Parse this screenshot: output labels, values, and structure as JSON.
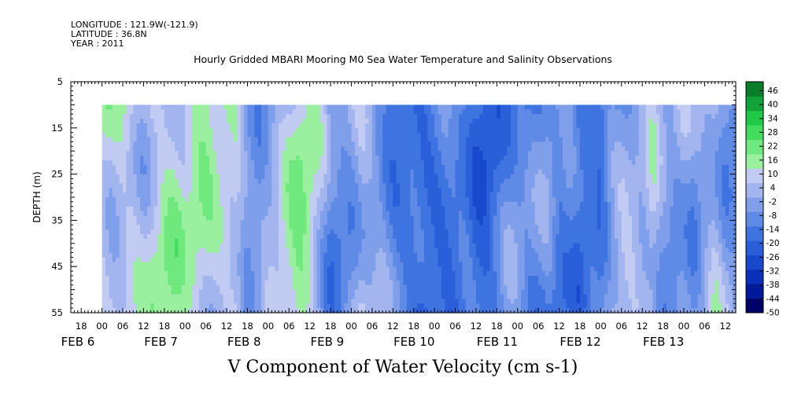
{
  "header": {
    "longitude": "LONGITUDE : 121.9W(-121.9)",
    "latitude": "LATITUDE : 36.8N",
    "year": "YEAR : 2011"
  },
  "chart_data": {
    "type": "heatmap",
    "title": "Hourly Gridded MBARI Mooring M0 Sea Water Temperature and Salinity Observations",
    "xlabel": "V Component of Water Velocity (cm s-1)",
    "ylabel": "DEPTH (m)",
    "ylim": [
      55,
      5
    ],
    "y_ticks": [
      5,
      15,
      25,
      35,
      45,
      55
    ],
    "data_depth_range": [
      10,
      55
    ],
    "x_range_hours": [
      0,
      192
    ],
    "x_start": "2011-02-05 15:00",
    "x_tick_labels": [
      "18",
      "00",
      "06",
      "12",
      "18",
      "00",
      "06",
      "12",
      "18",
      "00",
      "06",
      "12",
      "18",
      "00",
      "06",
      "12",
      "18",
      "00",
      "06",
      "12",
      "18",
      "00",
      "06",
      "12",
      "18",
      "00",
      "06",
      "12",
      "18",
      "00",
      "06",
      "12"
    ],
    "x_day_labels": [
      {
        "text": "FEB  6",
        "at_hour": 9
      },
      {
        "text": "FEB  7",
        "at_hour": 33
      },
      {
        "text": "FEB  8",
        "at_hour": 57
      },
      {
        "text": "FEB  9",
        "at_hour": 81
      },
      {
        "text": "FEB 10",
        "at_hour": 105
      },
      {
        "text": "FEB 11",
        "at_hour": 129
      },
      {
        "text": "FEB 12",
        "at_hour": 153
      },
      {
        "text": "FEB 13",
        "at_hour": 177
      }
    ],
    "data_start_hour": 9,
    "colorbar": {
      "levels": [
        -50,
        -44,
        -38,
        -32,
        -26,
        -20,
        -14,
        -8,
        -2,
        4,
        10,
        16,
        22,
        28,
        34,
        40,
        46
      ],
      "labels": [
        "46",
        "40",
        "34",
        "28",
        "22",
        "16",
        "10",
        "4",
        "-2",
        "-8",
        "-14",
        "-20",
        "-26",
        "-32",
        "-38",
        "-44",
        "-50"
      ]
    },
    "field_profile": {
      "hours": [
        9,
        12,
        15,
        18,
        21,
        24,
        27,
        30,
        33,
        36,
        39,
        42,
        45,
        48,
        51,
        54,
        57,
        60,
        63,
        66,
        69,
        72,
        75,
        78,
        81,
        84,
        87,
        90,
        93,
        96,
        99,
        102,
        105,
        108,
        111,
        114,
        117,
        120,
        123,
        126,
        129,
        132,
        135,
        138,
        141,
        144,
        147,
        150,
        153,
        156,
        159,
        162,
        165,
        168,
        171,
        174,
        177,
        180,
        183,
        186,
        189,
        192
      ],
      "mean_velocity": [
        6,
        5,
        8,
        8,
        4,
        8,
        10,
        10,
        6,
        9,
        9,
        8,
        9,
        9,
        -4,
        -6,
        0,
        4,
        8,
        12,
        8,
        0,
        -12,
        -10,
        -4,
        4,
        0,
        -6,
        -14,
        -18,
        -20,
        -22,
        -20,
        -16,
        -14,
        -12,
        -18,
        -20,
        -16,
        -10,
        -10,
        -14,
        -12,
        -8,
        -14,
        -10,
        -16,
        -12,
        -14,
        -4,
        0,
        -2,
        -4,
        2,
        -8,
        -8,
        -2,
        -6,
        0,
        4,
        -6,
        -10
      ]
    }
  }
}
